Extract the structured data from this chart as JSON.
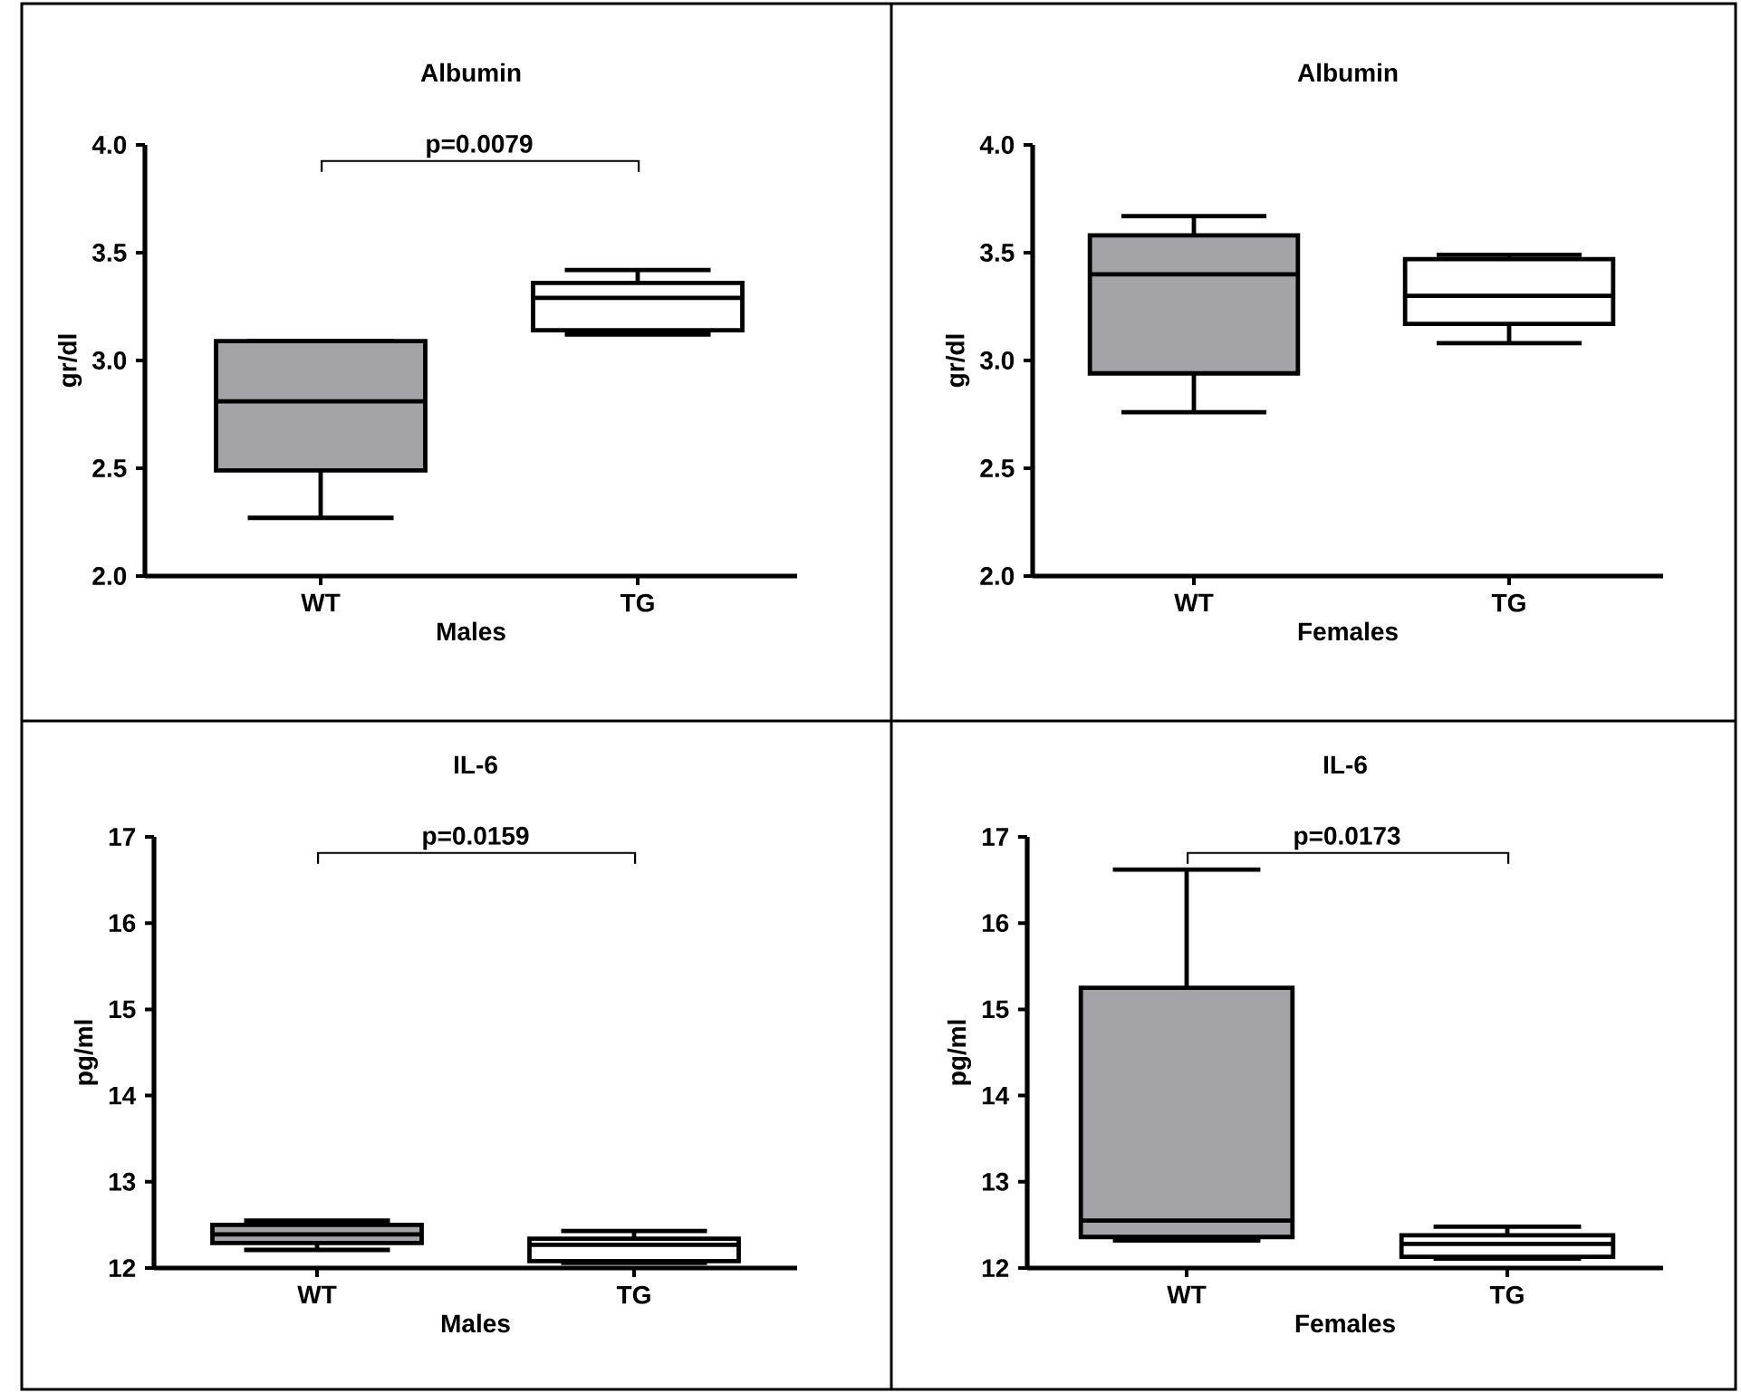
{
  "chart_data": [
    {
      "type": "box",
      "title": "Albumin",
      "xlabel": "Males",
      "ylabel": "gr/dl",
      "categories": [
        "WT",
        "TG"
      ],
      "colors": [
        "#a3a3a8",
        "#ffffff"
      ],
      "boxes": [
        {
          "low": 2.27,
          "q1": 2.49,
          "median": 2.81,
          "q3": 3.09,
          "high": 3.09
        },
        {
          "low": 3.12,
          "q1": 3.14,
          "median": 3.29,
          "q3": 3.36,
          "high": 3.42
        }
      ],
      "ylim": [
        2,
        4
      ],
      "yticks": [
        {
          "value": 2,
          "label": "2.0"
        },
        {
          "value": 2.5,
          "label": "2.5"
        },
        {
          "value": 3,
          "label": "3.0"
        },
        {
          "value": 3.5,
          "label": "3.5"
        },
        {
          "value": 4,
          "label": "4.0"
        }
      ],
      "annotations": [
        "p=0.0079"
      ]
    },
    {
      "type": "box",
      "title": "Albumin",
      "xlabel": "Females",
      "ylabel": "gr/dl",
      "categories": [
        "WT",
        "TG"
      ],
      "colors": [
        "#a3a3a8",
        "#ffffff"
      ],
      "boxes": [
        {
          "low": 2.76,
          "q1": 2.94,
          "median": 3.4,
          "q3": 3.58,
          "high": 3.67
        },
        {
          "low": 3.08,
          "q1": 3.17,
          "median": 3.3,
          "q3": 3.47,
          "high": 3.49
        }
      ],
      "ylim": [
        2,
        4
      ],
      "yticks": [
        {
          "value": 2,
          "label": "2.0"
        },
        {
          "value": 2.5,
          "label": "2.5"
        },
        {
          "value": 3,
          "label": "3.0"
        },
        {
          "value": 3.5,
          "label": "3.5"
        },
        {
          "value": 4,
          "label": "4.0"
        }
      ]
    },
    {
      "type": "box",
      "title": "IL-6",
      "xlabel": "Males",
      "ylabel": "pg/ml",
      "categories": [
        "WT",
        "TG"
      ],
      "colors": [
        "#a3a3a8",
        "#ffffff"
      ],
      "boxes": [
        {
          "low": 12.21,
          "q1": 12.29,
          "median": 12.39,
          "q3": 12.5,
          "high": 12.55
        },
        {
          "low": 12.06,
          "q1": 12.08,
          "median": 12.27,
          "q3": 12.34,
          "high": 12.43
        }
      ],
      "ylim": [
        12,
        17
      ],
      "yticks": [
        12,
        13,
        14,
        15,
        16,
        17
      ],
      "annotations": [
        "p=0.0159"
      ]
    },
    {
      "type": "box",
      "title": "IL-6",
      "xlabel": "Females",
      "ylabel": "pg/ml",
      "categories": [
        "WT",
        "TG"
      ],
      "colors": [
        "#a3a3a8",
        "#ffffff"
      ],
      "boxes": [
        {
          "low": 12.32,
          "q1": 12.36,
          "median": 12.55,
          "q3": 15.25,
          "high": 16.62
        },
        {
          "low": 12.11,
          "q1": 12.13,
          "median": 12.28,
          "q3": 12.38,
          "high": 12.48
        }
      ],
      "ylim": [
        12,
        17
      ],
      "yticks": [
        12,
        13,
        14,
        15,
        16,
        17
      ],
      "annotations": [
        "p=0.0173"
      ]
    }
  ]
}
